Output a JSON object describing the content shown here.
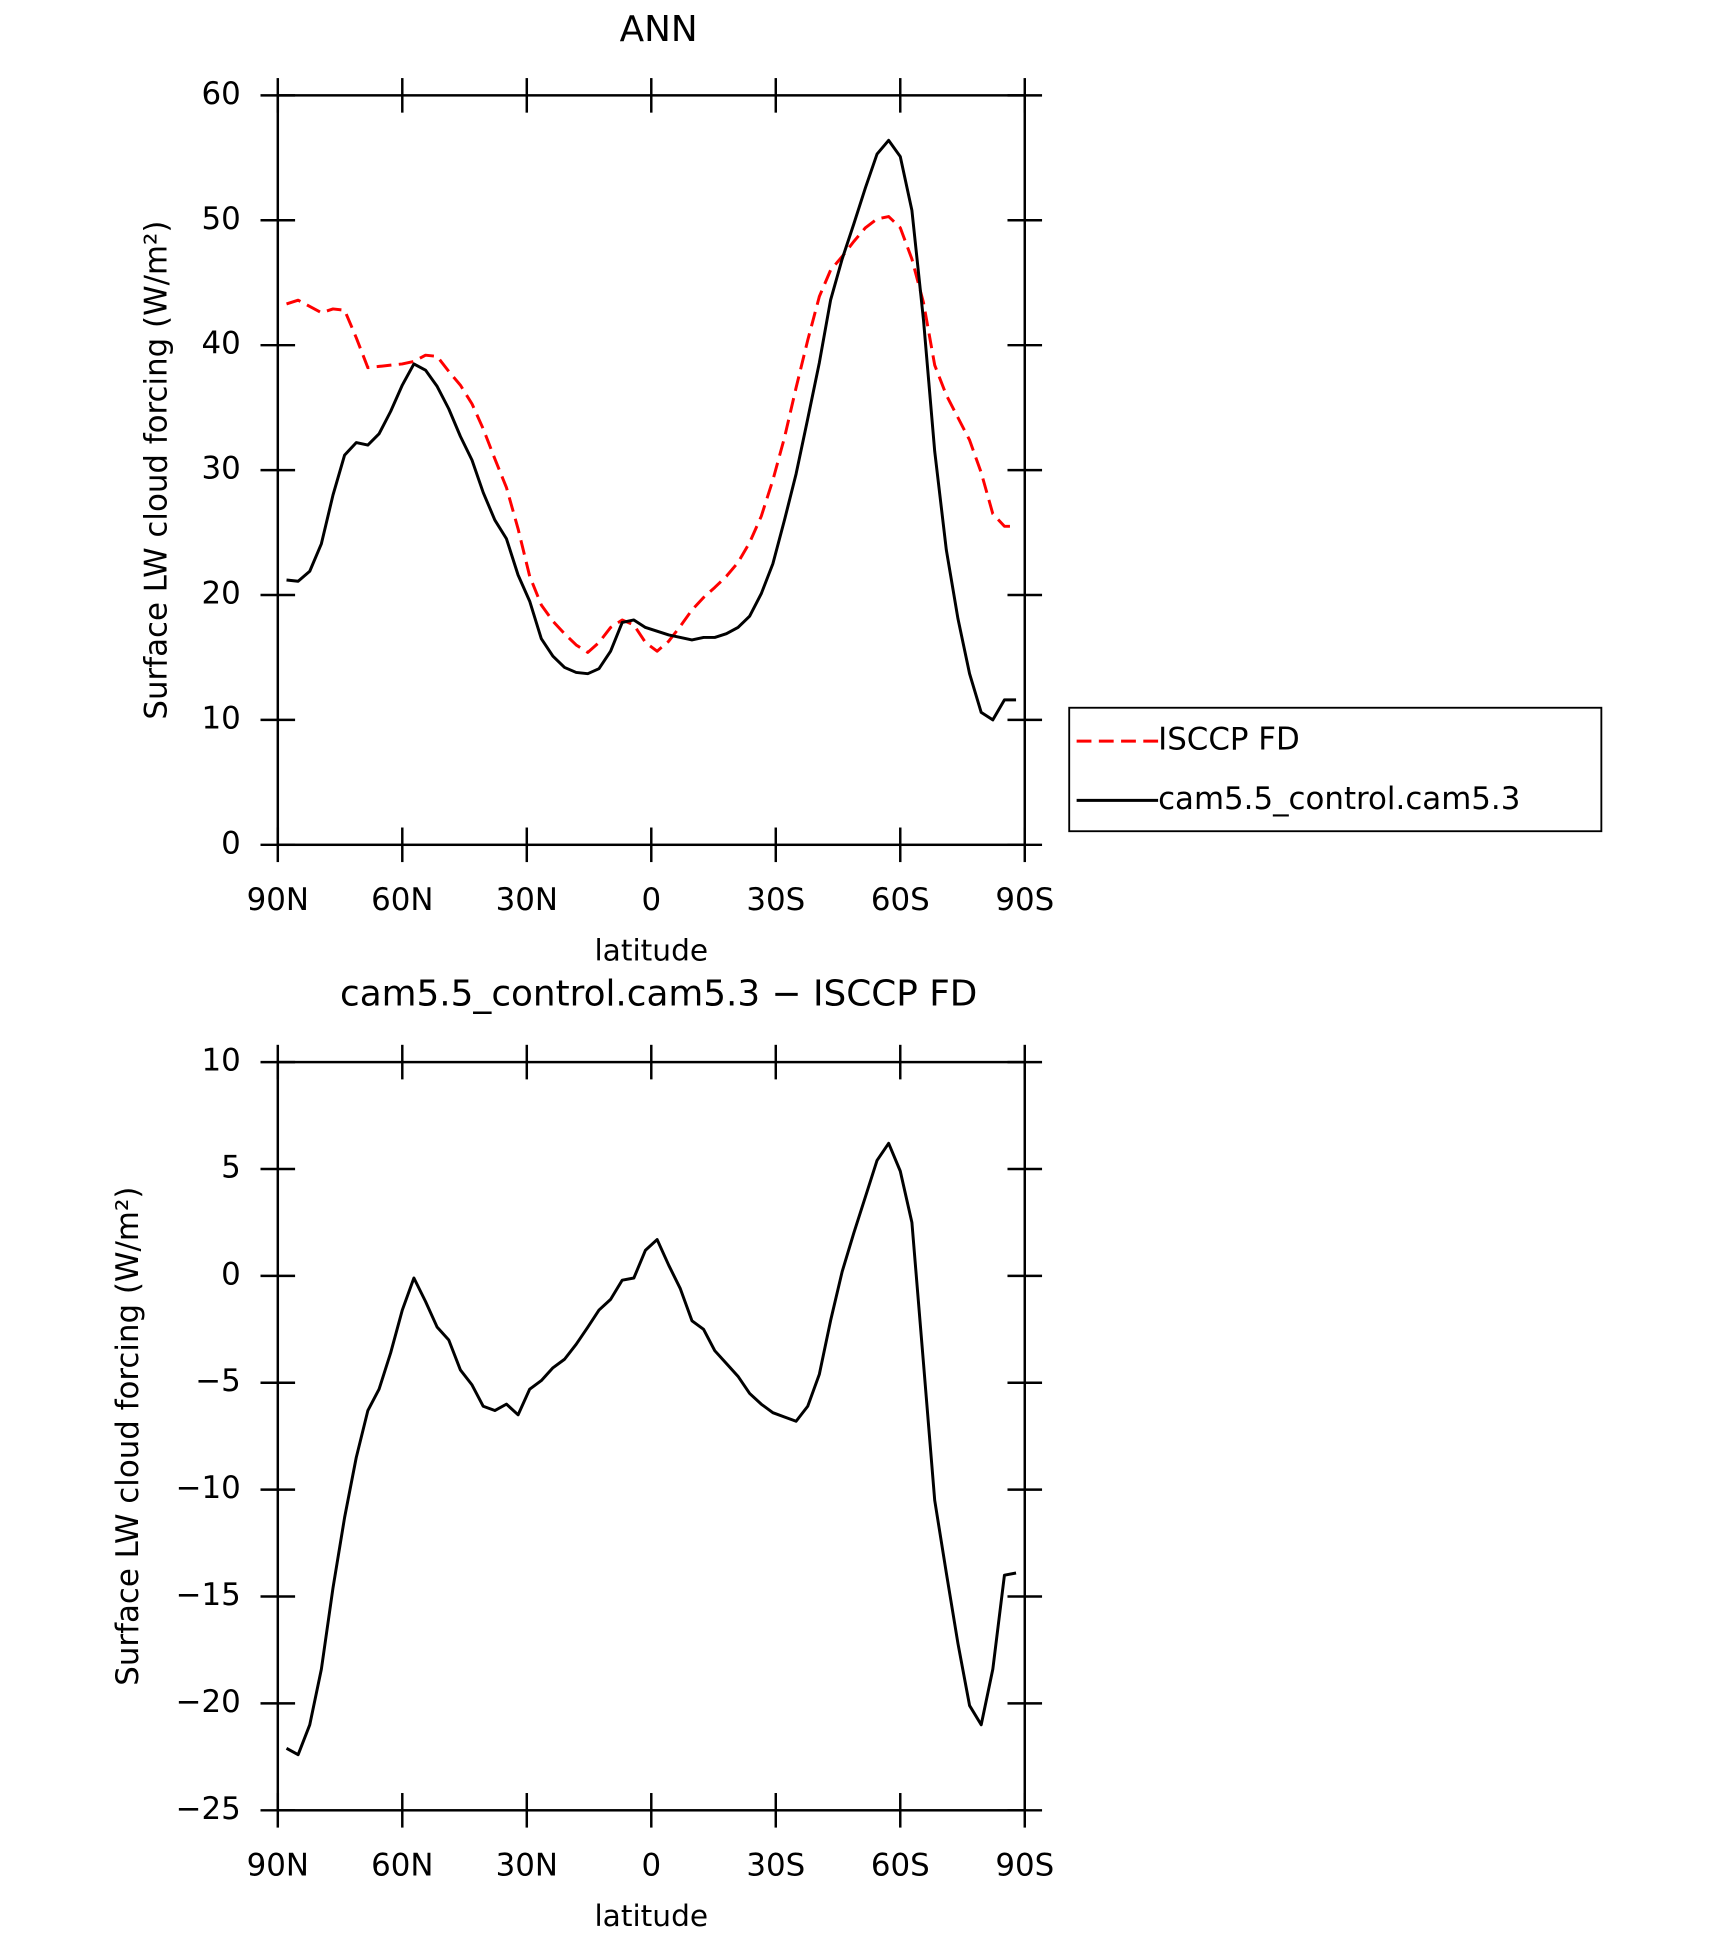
{
  "chart_data": [
    {
      "type": "line",
      "title": "ANN",
      "xlabel": "latitude",
      "ylabel": "Surface LW cloud forcing (W/m²)",
      "x": [
        87.9,
        85.1,
        82.3,
        79.5,
        76.7,
        73.9,
        71.1,
        68.3,
        65.6,
        62.8,
        60.0,
        57.2,
        54.4,
        51.6,
        48.8,
        46.0,
        43.2,
        40.5,
        37.7,
        34.9,
        32.1,
        29.3,
        26.5,
        23.7,
        20.9,
        18.1,
        15.3,
        12.6,
        9.8,
        7.0,
        4.2,
        1.4,
        -1.4,
        -4.2,
        -7.0,
        -9.8,
        -12.6,
        -15.3,
        -18.1,
        -20.9,
        -23.7,
        -26.5,
        -29.3,
        -32.1,
        -34.9,
        -37.7,
        -40.5,
        -43.2,
        -46.0,
        -48.8,
        -51.6,
        -54.4,
        -57.2,
        -60.0,
        -62.8,
        -65.6,
        -68.3,
        -71.1,
        -73.9,
        -76.7,
        -79.5,
        -82.3,
        -85.1,
        -87.9
      ],
      "series": [
        {
          "name": "ISCCP FD",
          "color": "#ff0000",
          "linestyle": "dashed",
          "values": [
            43.3,
            43.6,
            43.1,
            42.6,
            42.9,
            42.8,
            40.6,
            38.2,
            38.3,
            38.4,
            38.5,
            38.7,
            39.2,
            39.1,
            37.9,
            36.8,
            35.3,
            33.3,
            30.9,
            28.6,
            25.3,
            21.5,
            19.2,
            17.9,
            16.9,
            16.0,
            15.4,
            16.2,
            17.4,
            18.0,
            17.6,
            16.2,
            15.5,
            16.3,
            17.5,
            18.8,
            19.8,
            20.6,
            21.5,
            22.6,
            24.2,
            26.3,
            29.2,
            32.6,
            36.6,
            40.4,
            43.9,
            46.0,
            47.1,
            48.3,
            49.4,
            50.1,
            50.3,
            49.4,
            46.9,
            43.4,
            38.4,
            36.0,
            34.2,
            32.4,
            29.8,
            26.5,
            25.5,
            25.5
          ]
        },
        {
          "name": "cam5.5_control.cam5.3",
          "color": "#000000",
          "linestyle": "solid",
          "values": [
            21.2,
            21.1,
            21.9,
            24.1,
            28.0,
            31.2,
            32.2,
            32.0,
            32.9,
            34.7,
            36.8,
            38.5,
            38.0,
            36.7,
            34.9,
            32.7,
            30.8,
            28.2,
            26.0,
            24.5,
            21.6,
            19.5,
            16.5,
            15.1,
            14.2,
            13.8,
            13.7,
            14.1,
            15.5,
            17.8,
            18.0,
            17.4,
            17.1,
            16.8,
            16.6,
            16.4,
            16.6,
            16.6,
            16.9,
            17.4,
            18.3,
            20.1,
            22.5,
            26.0,
            29.7,
            34.1,
            38.6,
            43.6,
            46.9,
            49.7,
            52.6,
            55.3,
            56.4,
            55.1,
            50.8,
            42.0,
            31.5,
            23.6,
            18.1,
            13.7,
            10.6,
            10.0,
            11.6,
            11.6
          ]
        }
      ],
      "xlim": [
        90,
        -90
      ],
      "xticks": [
        {
          "value": 90,
          "label": "90N"
        },
        {
          "value": 60,
          "label": "60N"
        },
        {
          "value": 30,
          "label": "30N"
        },
        0,
        {
          "value": -30,
          "label": "30S"
        },
        {
          "value": -60,
          "label": "60S"
        },
        {
          "value": -90,
          "label": "90S"
        }
      ],
      "ylim": [
        0,
        60
      ],
      "yticks": [
        0,
        10,
        20,
        30,
        40,
        50,
        60
      ],
      "legend": "right"
    },
    {
      "type": "line",
      "title": "cam5.5_control.cam5.3 − ISCCP FD",
      "xlabel": "latitude",
      "ylabel": "Surface LW cloud forcing (W/m²)",
      "x": [
        87.9,
        85.1,
        82.3,
        79.5,
        76.7,
        73.9,
        71.1,
        68.3,
        65.6,
        62.8,
        60.0,
        57.2,
        54.4,
        51.6,
        48.8,
        46.0,
        43.2,
        40.5,
        37.7,
        34.9,
        32.1,
        29.3,
        26.5,
        23.7,
        20.9,
        18.1,
        15.3,
        12.6,
        9.8,
        7.0,
        4.2,
        1.4,
        -1.4,
        -4.2,
        -7.0,
        -9.8,
        -12.6,
        -15.3,
        -18.1,
        -20.9,
        -23.7,
        -26.5,
        -29.3,
        -32.1,
        -34.9,
        -37.7,
        -40.5,
        -43.2,
        -46.0,
        -48.8,
        -51.6,
        -54.4,
        -57.2,
        -60.0,
        -62.8,
        -65.6,
        -68.3,
        -71.1,
        -73.9,
        -76.7,
        -79.5,
        -82.3,
        -85.1,
        -87.9
      ],
      "series": [
        {
          "color": "#000000",
          "linestyle": "solid",
          "values": [
            -22.1,
            -22.4,
            -21.0,
            -18.4,
            -14.6,
            -11.3,
            -8.5,
            -6.3,
            -5.3,
            -3.6,
            -1.6,
            -0.1,
            -1.2,
            -2.4,
            -3.0,
            -4.4,
            -5.1,
            -6.1,
            -6.3,
            -6.0,
            -6.5,
            -5.3,
            -4.9,
            -4.3,
            -3.9,
            -3.2,
            -2.4,
            -1.6,
            -1.1,
            -0.2,
            -0.1,
            1.2,
            1.7,
            0.5,
            -0.6,
            -2.1,
            -2.5,
            -3.5,
            -4.1,
            -4.7,
            -5.5,
            -6.0,
            -6.4,
            -6.6,
            -6.8,
            -6.1,
            -4.6,
            -2.1,
            0.2,
            2.0,
            3.7,
            5.4,
            6.2,
            4.9,
            2.5,
            -4.1,
            -10.5,
            -13.9,
            -17.2,
            -20.1,
            -21.0,
            -18.4,
            -14.0,
            -13.9
          ]
        }
      ],
      "xlim": [
        90,
        -90
      ],
      "xticks": [
        {
          "value": 90,
          "label": "90N"
        },
        {
          "value": 60,
          "label": "60N"
        },
        {
          "value": 30,
          "label": "30N"
        },
        0,
        {
          "value": -30,
          "label": "30S"
        },
        {
          "value": -60,
          "label": "60S"
        },
        {
          "value": -90,
          "label": "90S"
        }
      ],
      "ylim": [
        -25,
        10
      ],
      "yticks": [
        {
          "value": -25,
          "label": "−25"
        },
        {
          "value": -20,
          "label": "−20"
        },
        {
          "value": -15,
          "label": "−15"
        },
        {
          "value": -10,
          "label": "−10"
        },
        {
          "value": -5,
          "label": "−5"
        },
        0,
        5,
        10
      ]
    }
  ]
}
